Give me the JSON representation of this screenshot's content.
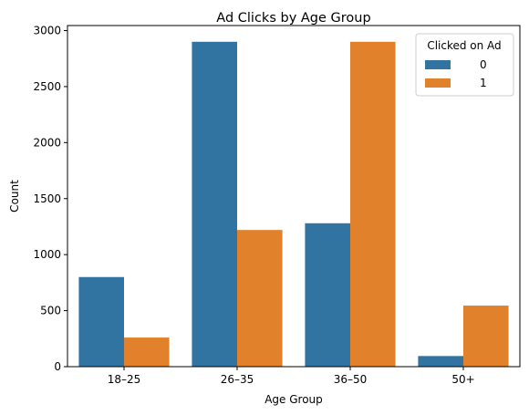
{
  "chart_data": {
    "type": "bar",
    "title": "Ad Clicks by Age Group",
    "xlabel": "Age Group",
    "ylabel": "Count",
    "categories": [
      "18–25",
      "26–35",
      "36–50",
      "50+"
    ],
    "series": [
      {
        "name": "0",
        "values": [
          800,
          2900,
          1280,
          95
        ],
        "color": "#3274a1"
      },
      {
        "name": "1",
        "values": [
          260,
          1220,
          2900,
          545
        ],
        "color": "#e1812c"
      }
    ],
    "ylim": [
      0,
      3045
    ],
    "yticks": [
      0,
      500,
      1000,
      1500,
      2000,
      2500,
      3000
    ],
    "grid": false,
    "legend": {
      "title": "Clicked on Ad",
      "placement": "top-right"
    }
  }
}
